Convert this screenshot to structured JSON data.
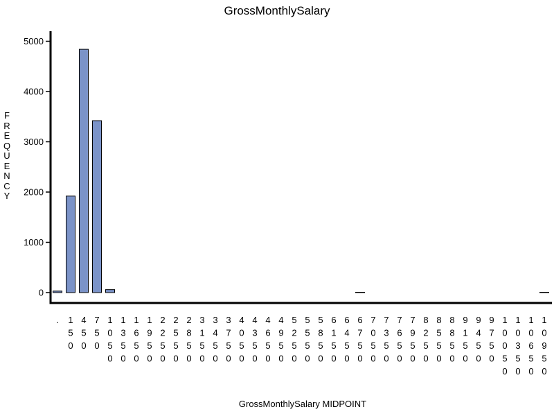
{
  "chart_data": {
    "type": "bar",
    "title": "GrossMonthlySalary",
    "xlabel": "GrossMonthlySalary  MIDPOINT",
    "ylabel": "FREQUENCY",
    "ylim": [
      0,
      5200
    ],
    "yticks": [
      0,
      1000,
      2000,
      3000,
      4000,
      5000
    ],
    "grid": false,
    "bar_color": "#7b93c8",
    "bar_edge_color": "#000000",
    "categories": [
      ".",
      "150",
      "450",
      "750",
      "1050",
      "1350",
      "1650",
      "1950",
      "2250",
      "2550",
      "2850",
      "3150",
      "3450",
      "3750",
      "4050",
      "4350",
      "4650",
      "4950",
      "5250",
      "5550",
      "5850",
      "6150",
      "6450",
      "6750",
      "7050",
      "7350",
      "7650",
      "7950",
      "8250",
      "8550",
      "8850",
      "9150",
      "9450",
      "9750",
      "10050",
      "10350",
      "10650",
      "10950"
    ],
    "values": [
      30,
      1920,
      4840,
      3420,
      60,
      0,
      0,
      0,
      0,
      0,
      0,
      0,
      0,
      0,
      0,
      0,
      0,
      0,
      0,
      0,
      0,
      0,
      0,
      3,
      0,
      0,
      0,
      0,
      0,
      0,
      0,
      0,
      0,
      0,
      0,
      0,
      0,
      3
    ]
  }
}
